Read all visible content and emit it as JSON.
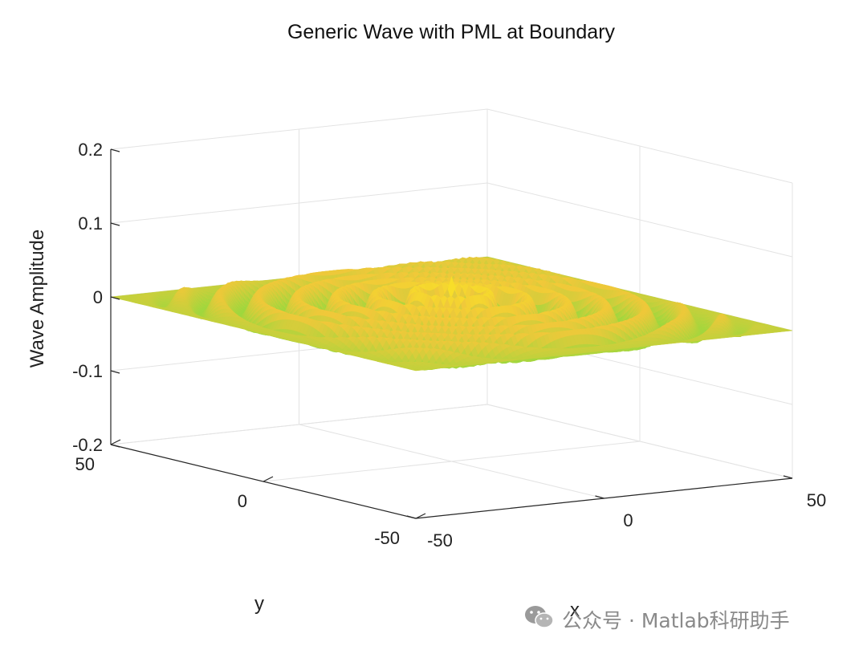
{
  "chart_data": {
    "type": "surface",
    "title": "Generic Wave with PML at Boundary",
    "xlabel": "x",
    "ylabel": "y",
    "zlabel": "Wave Amplitude",
    "xlim": [
      -50,
      50
    ],
    "ylim": [
      -50,
      50
    ],
    "zlim": [
      -0.2,
      0.2
    ],
    "x_ticks": [
      "-50",
      "0",
      "50"
    ],
    "y_ticks": [
      "-50",
      "0",
      "50"
    ],
    "z_ticks": [
      "-0.2",
      "-0.1",
      "0",
      "0.1",
      "0.2"
    ],
    "grid": true,
    "colormap": [
      "#2ec8a0",
      "#9bd83e",
      "#f0c83a",
      "#fff31a"
    ],
    "surface": {
      "description_of_data": "radially symmetric damped ripple",
      "peak_amplitude": 0.05,
      "wavelength": 8,
      "pml_thickness": 10
    }
  },
  "watermark": {
    "text": "公众号 · Matlab科研助手",
    "icon": "wechat-icon"
  }
}
